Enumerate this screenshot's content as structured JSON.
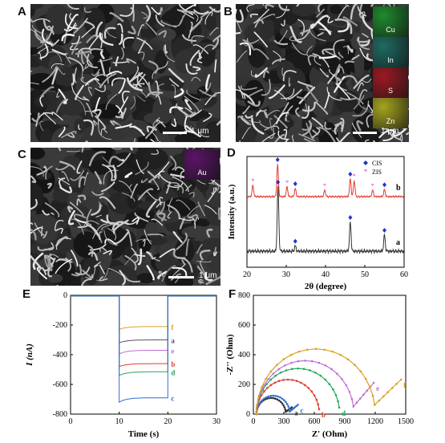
{
  "panels": {
    "A": {
      "letter": "A",
      "scalebar": "1 μm"
    },
    "B": {
      "letter": "B",
      "scalebar": "1 μm",
      "maps": [
        {
          "label": "Cu",
          "color": "#1f8a2e"
        },
        {
          "label": "In",
          "color": "#1f6b63"
        },
        {
          "label": "S",
          "color": "#9a1b24"
        },
        {
          "label": "Zn",
          "color": "#a5a31f"
        }
      ]
    },
    "C": {
      "letter": "C",
      "scalebar": "1 μm",
      "maps": [
        {
          "label": "Au",
          "color": "#5a1566"
        }
      ]
    },
    "D": {
      "letter": "D"
    },
    "E": {
      "letter": "E"
    },
    "F": {
      "letter": "F"
    }
  },
  "chart_data": [
    {
      "panel": "D",
      "type": "line",
      "xlabel": "2θ (degree)",
      "ylabel": "Intensity (a.u.)",
      "xlim": [
        20,
        60
      ],
      "xticks": [
        20,
        30,
        40,
        50,
        60
      ],
      "legend": [
        {
          "name": "CIS",
          "marker": "diamond",
          "color": "#2535c7"
        },
        {
          "name": "ZIS",
          "marker": "star",
          "color": "#cf3fc5"
        }
      ],
      "series": [
        {
          "name": "b",
          "color": "#e53a2b",
          "peaks": [
            {
              "x": 21.5,
              "h": 0.35,
              "marker": "ZIS"
            },
            {
              "x": 27.8,
              "h": 1.0,
              "marker": "CIS"
            },
            {
              "x": 30.2,
              "h": 0.3,
              "marker": "ZIS"
            },
            {
              "x": 32.3,
              "h": 0.25,
              "marker": "CIS"
            },
            {
              "x": 39.8,
              "h": 0.2,
              "marker": "ZIS"
            },
            {
              "x": 46.3,
              "h": 0.55,
              "marker": "CIS"
            },
            {
              "x": 47.3,
              "h": 0.5,
              "marker": "ZIS"
            },
            {
              "x": 52.0,
              "h": 0.2,
              "marker": "ZIS"
            },
            {
              "x": 55.0,
              "h": 0.22,
              "marker": "CIS"
            }
          ]
        },
        {
          "name": "a",
          "color": "#333333",
          "peaks": [
            {
              "x": 27.9,
              "h": 1.0,
              "marker": "CIS"
            },
            {
              "x": 32.3,
              "h": 0.08,
              "marker": "CIS"
            },
            {
              "x": 46.3,
              "h": 0.45,
              "marker": "CIS"
            },
            {
              "x": 55.0,
              "h": 0.25,
              "marker": "CIS"
            }
          ]
        }
      ]
    },
    {
      "panel": "E",
      "type": "line",
      "xlabel": "Time (s)",
      "ylabel": "I (nA)",
      "xlim": [
        0,
        30
      ],
      "ylim": [
        -800,
        0
      ],
      "xticks": [
        0,
        10,
        20,
        30
      ],
      "yticks": [
        0,
        -200,
        -400,
        -600,
        -800
      ],
      "on_time": 10,
      "off_time": 20,
      "series": [
        {
          "name": "f",
          "color": "#d9a21d",
          "on_start": -230,
          "on_end": -210
        },
        {
          "name": "a",
          "color": "#555555",
          "on_start": -320,
          "on_end": -300
        },
        {
          "name": "e",
          "color": "#c06fd6",
          "on_start": -395,
          "on_end": -370
        },
        {
          "name": "b",
          "color": "#e23b2e",
          "on_start": -480,
          "on_end": -460
        },
        {
          "name": "d",
          "color": "#26a65b",
          "on_start": -540,
          "on_end": -515
        },
        {
          "name": "c",
          "color": "#2f6fd1",
          "on_start": -720,
          "on_end": -690
        }
      ]
    },
    {
      "panel": "F",
      "type": "scatter",
      "xlabel": "Z' (Ohm)",
      "ylabel": "-Z'' (Ohm)",
      "xlim": [
        0,
        1500
      ],
      "ylim": [
        0,
        800
      ],
      "xticks": [
        0,
        300,
        600,
        900,
        1200,
        1500
      ],
      "yticks": [
        0,
        200,
        400,
        600,
        800
      ],
      "series": [
        {
          "name": "a",
          "color": "#333333",
          "x0": 30,
          "d": 290,
          "tail_dx": 60,
          "tail_dy": 30
        },
        {
          "name": "c",
          "color": "#2f6fd1",
          "x0": 30,
          "d": 330,
          "tail_dx": 80,
          "tail_dy": 45
        },
        {
          "name": "b",
          "color": "#e23b2e",
          "x0": 30,
          "d": 620,
          "tail_dx": 0,
          "tail_dy": 0
        },
        {
          "name": "d",
          "color": "#26a65b",
          "x0": 30,
          "d": 820,
          "tail_dx": 0,
          "tail_dy": 0
        },
        {
          "name": "e",
          "color": "#c06fd6",
          "x0": 30,
          "d": 960,
          "tail_dx": 200,
          "tail_dy": 160
        },
        {
          "name": "f",
          "color": "#d9a21d",
          "x0": 30,
          "d": 1170,
          "tail_dx": 260,
          "tail_dy": 170
        }
      ]
    }
  ]
}
